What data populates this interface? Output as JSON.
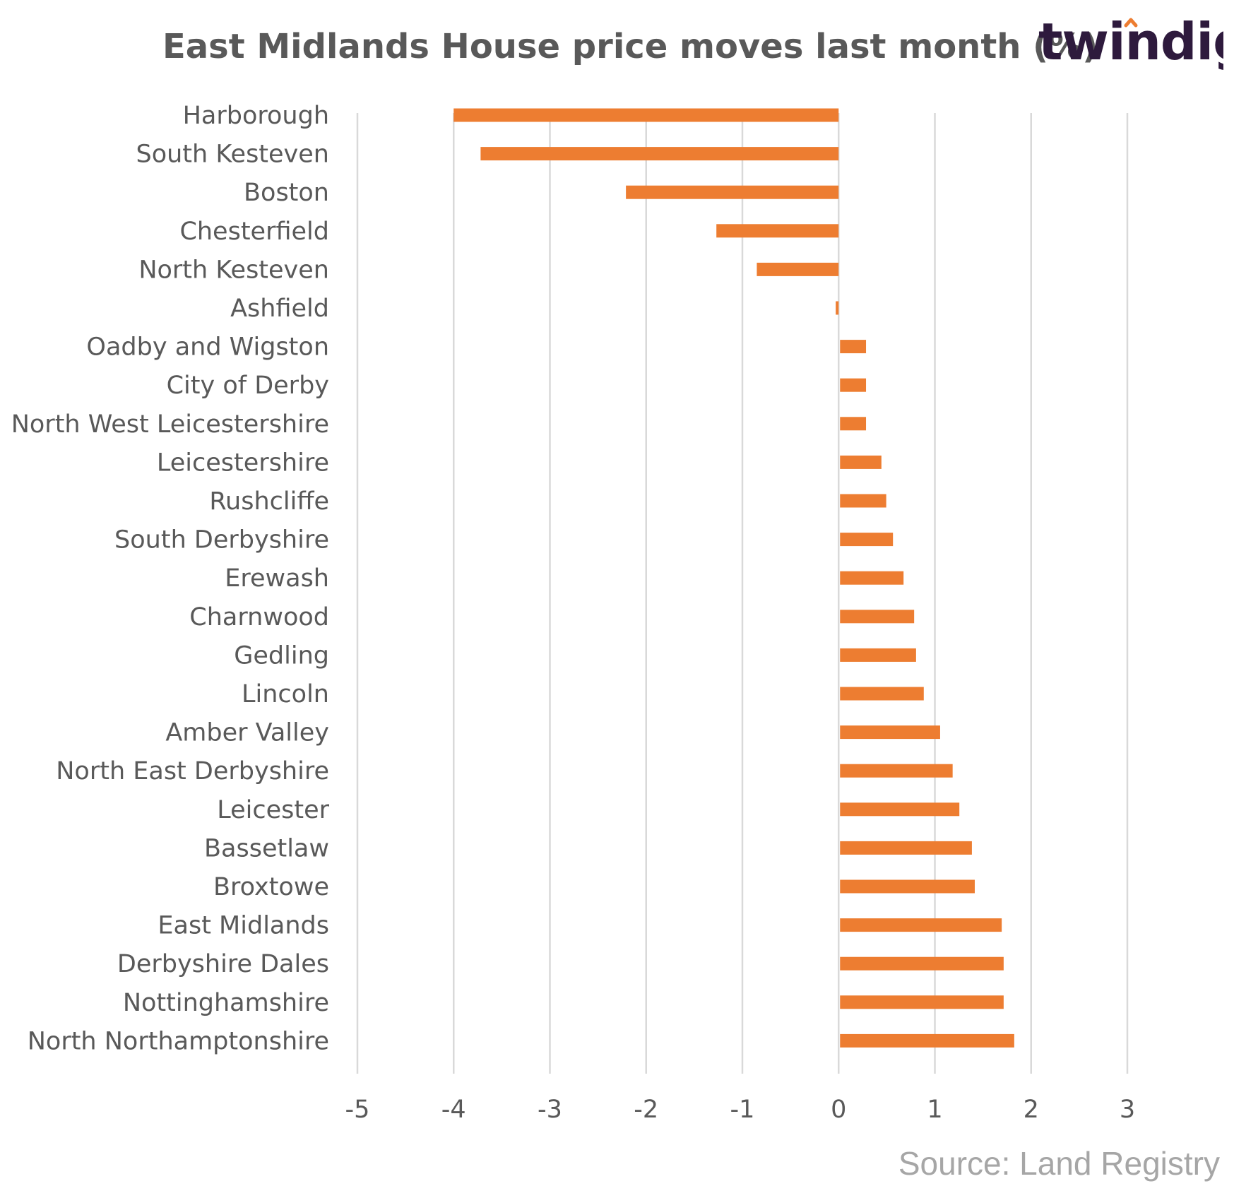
{
  "chart_data": {
    "type": "bar",
    "orientation": "horizontal",
    "title": "East Midlands  House price moves last month (%)",
    "xlabel": "",
    "ylabel": "",
    "xlim": [
      -5,
      3
    ],
    "x_ticks": [
      "-5",
      "-4",
      "-3",
      "-2",
      "-1",
      "0",
      "1",
      "2",
      "3"
    ],
    "grid": "vertical",
    "legend": "none",
    "bar_color": "#ED7D31",
    "gridline_color": "#D9D9D9",
    "categories": [
      "Harborough",
      "South Kesteven",
      "Boston",
      "Chesterfield",
      "North Kesteven",
      "Ashfield",
      "Oadby and Wigston",
      "City of Derby",
      "North West Leicestershire",
      "Leicestershire",
      "Rushcliffe",
      "South Derbyshire",
      "Erewash",
      "Charnwood",
      "Gedling",
      "Lincoln",
      "Amber Valley",
      "North East Derbyshire",
      "Leicester",
      "Bassetlaw",
      "Broxtowe",
      "East Midlands",
      "Derbyshire Dales",
      "Nottinghamshire",
      "North Northamptonshire"
    ],
    "values": [
      -4.0,
      -3.72,
      -2.21,
      -1.27,
      -0.85,
      -0.03,
      0.27,
      0.27,
      0.27,
      0.43,
      0.48,
      0.55,
      0.66,
      0.77,
      0.79,
      0.87,
      1.04,
      1.17,
      1.24,
      1.37,
      1.4,
      1.68,
      1.7,
      1.7,
      1.81
    ]
  },
  "logo": {
    "text": "twindig",
    "accent_color": "#ED7D31"
  },
  "source": "Source: Land Registry"
}
